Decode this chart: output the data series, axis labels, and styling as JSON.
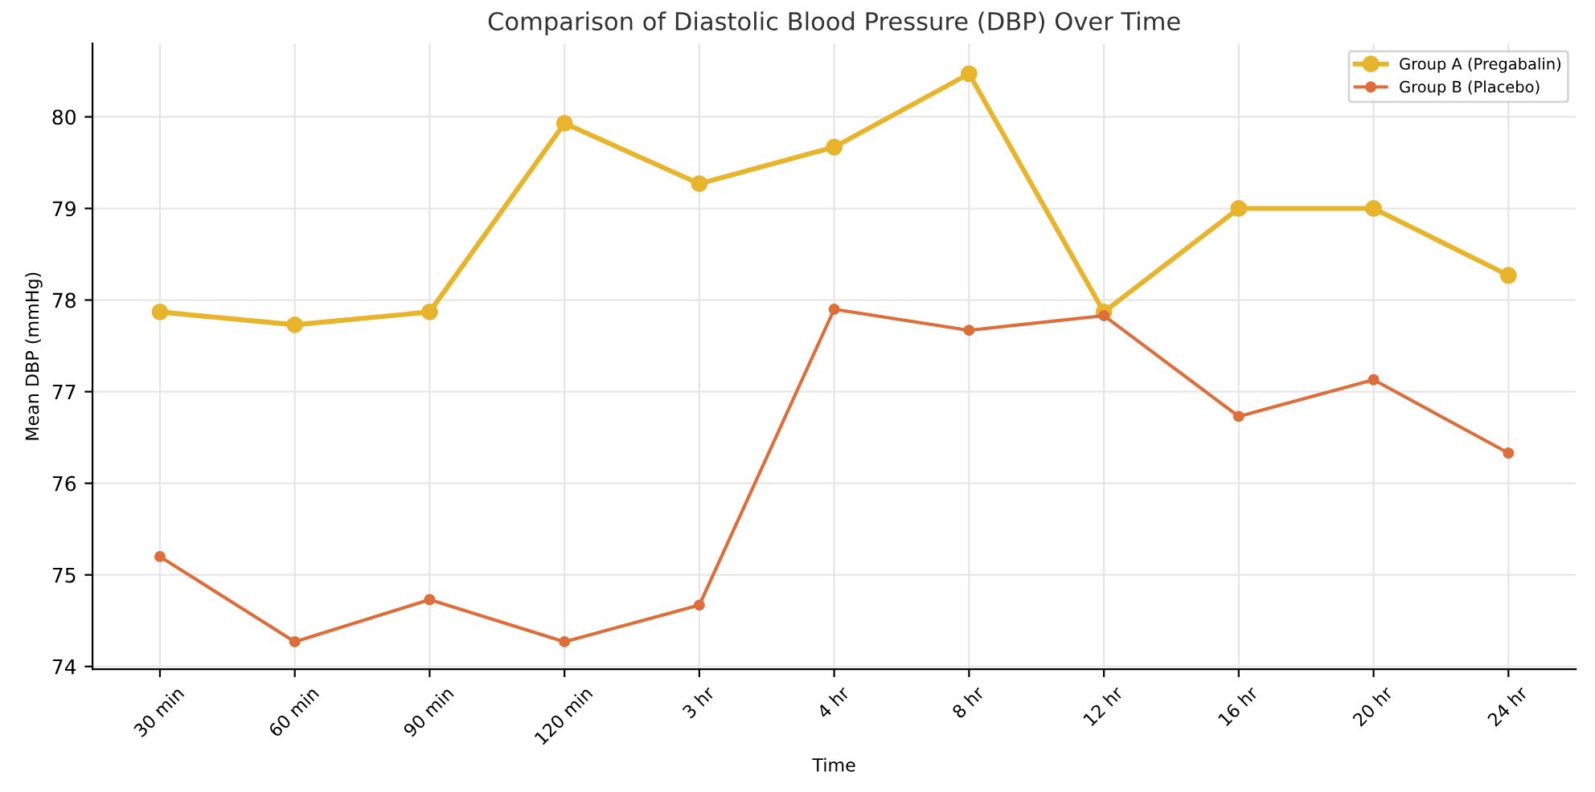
{
  "chart_data": {
    "type": "line",
    "title": "Comparison of Diastolic Blood Pressure (DBP) Over Time",
    "xlabel": "Time",
    "ylabel": "Mean DBP (mmHg)",
    "categories": [
      "30 min",
      "60 min",
      "90 min",
      "120 min",
      "3 hr",
      "4 hr",
      "8 hr",
      "12 hr",
      "16 hr",
      "20 hr",
      "24 hr"
    ],
    "series": [
      {
        "name": "Group A (Pregabalin)",
        "color": "#e8b42c",
        "values": [
          77.87,
          77.73,
          77.87,
          79.93,
          79.27,
          79.67,
          80.47,
          77.87,
          79.0,
          79.0,
          78.27
        ]
      },
      {
        "name": "Group B (Placebo)",
        "color": "#dd6e3a",
        "values": [
          75.2,
          74.27,
          74.73,
          74.27,
          74.67,
          77.9,
          77.67,
          77.83,
          76.73,
          77.13,
          76.33
        ]
      }
    ],
    "ylim": [
      73.97,
      80.8
    ],
    "yticks": [
      74,
      75,
      76,
      77,
      78,
      79,
      80
    ],
    "grid": true,
    "legend": "top right",
    "marker": "circle",
    "line_style": "solid"
  }
}
